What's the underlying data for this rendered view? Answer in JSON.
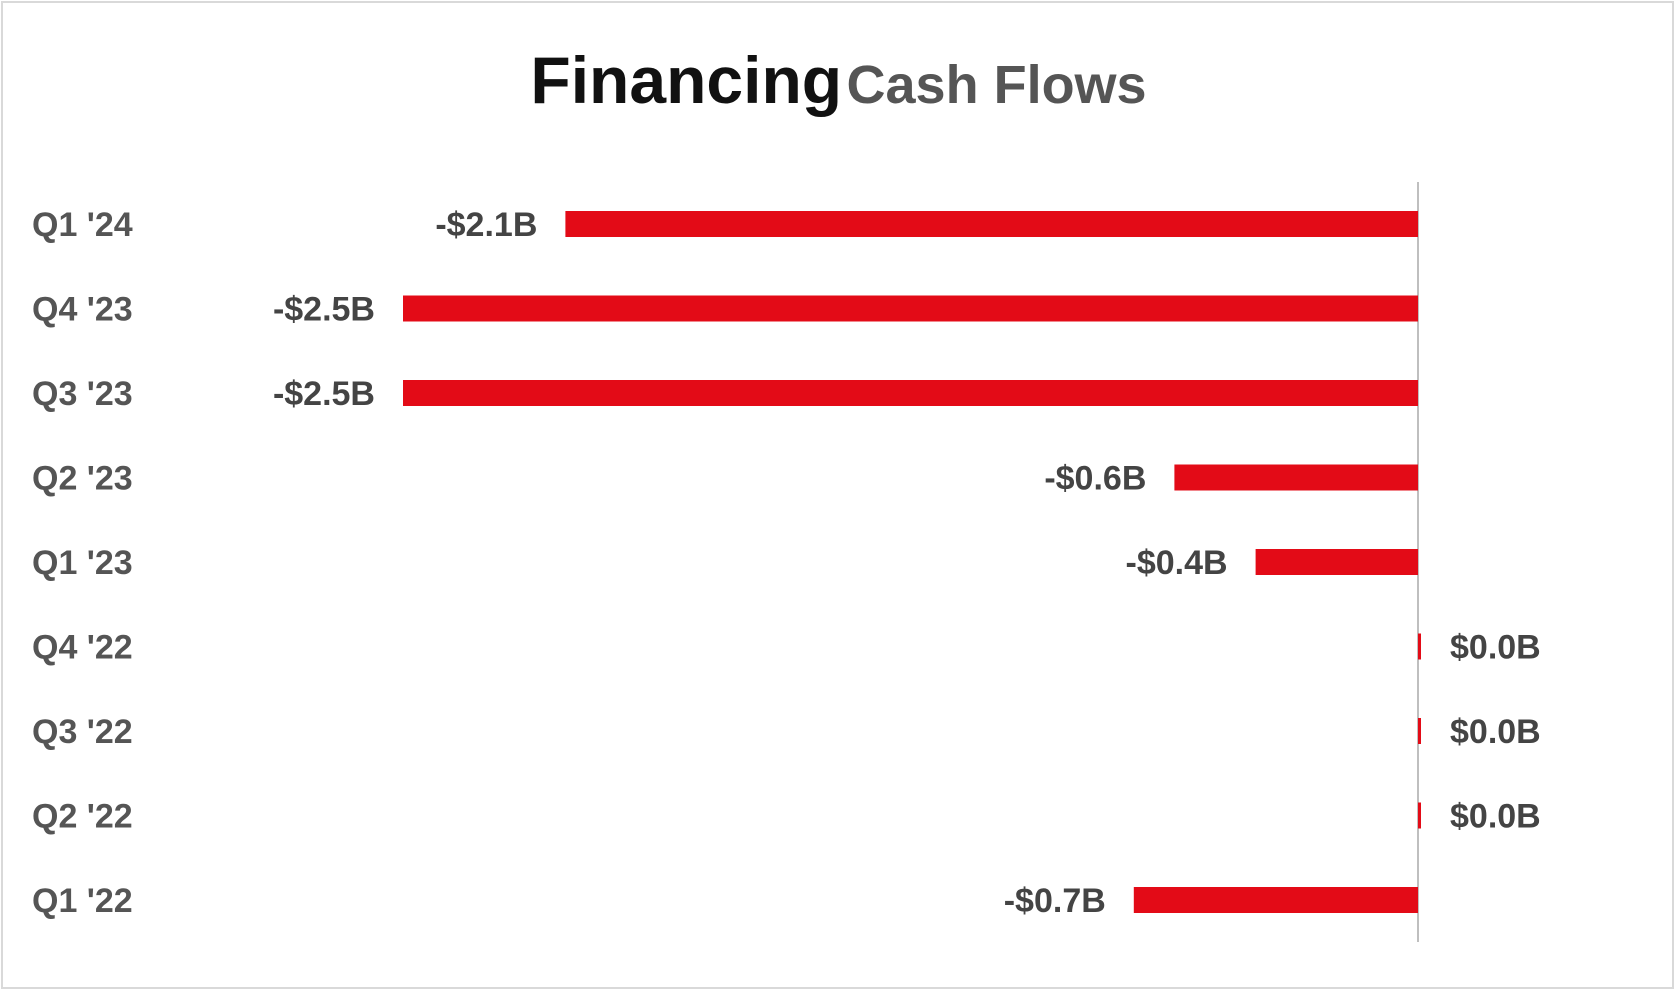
{
  "chart_data": {
    "type": "bar",
    "orientation": "horizontal",
    "title_main": "Financing",
    "title_sub": "Cash Flows",
    "categories": [
      "Q1 '24",
      "Q4 '23",
      "Q3 '23",
      "Q2 '23",
      "Q1 '23",
      "Q4 '22",
      "Q3 '22",
      "Q2 '22",
      "Q1 '22"
    ],
    "values": [
      -2.1,
      -2.5,
      -2.5,
      -0.6,
      -0.4,
      0.0,
      0.0,
      0.0,
      -0.7
    ],
    "data_labels": [
      "-$2.1B",
      "-$2.5B",
      "-$2.5B",
      "-$0.6B",
      "-$0.4B",
      "$0.0B",
      "$0.0B",
      "$0.0B",
      "-$0.7B"
    ],
    "xlim": [
      -2.5,
      0
    ],
    "bar_color": "#e30b17",
    "axis_color": "#bfbfbf",
    "grid": false,
    "legend": "none"
  }
}
